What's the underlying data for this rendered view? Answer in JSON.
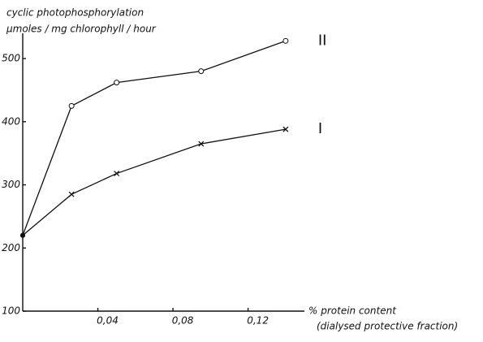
{
  "chart_data": {
    "type": "line",
    "y_label": [
      "cyclic photophosphorylation",
      "µmoles / mg chlorophyll / hour"
    ],
    "x_label": [
      "% protein content",
      "(dialysed protective fraction)"
    ],
    "x": [
      0,
      0.026,
      0.05,
      0.095,
      0.14
    ],
    "series": [
      {
        "name": "II",
        "color": "#111111",
        "marker": "circle",
        "values": [
          220,
          425,
          462,
          480,
          528
        ]
      },
      {
        "name": "I",
        "color": "#111111",
        "marker": "cross",
        "values": [
          220,
          285,
          318,
          365,
          388
        ]
      }
    ],
    "xlim": [
      0,
      0.15
    ],
    "xticks": [
      {
        "value": 0.04,
        "label": "0,04"
      },
      {
        "value": 0.08,
        "label": "0,08"
      },
      {
        "value": 0.12,
        "label": "0,12"
      }
    ],
    "ylim": [
      100,
      540
    ],
    "yticks": [
      100,
      200,
      300,
      400,
      500
    ],
    "grid": false
  }
}
